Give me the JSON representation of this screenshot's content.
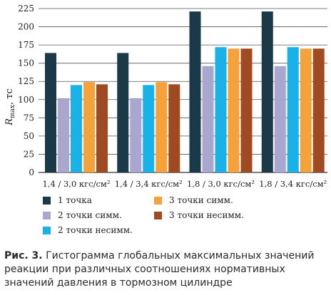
{
  "chart_data": {
    "type": "bar",
    "ylabel_main": "R",
    "ylabel_sub": "max",
    "ylabel_unit": ", тс",
    "ylim": [
      0,
      225
    ],
    "yticks": [
      0,
      25,
      50,
      75,
      100,
      125,
      150,
      175,
      200,
      225
    ],
    "grid": "horizontal",
    "legend_position": "bottom",
    "categories": [
      "1,4 / 3,0 кгс/см²",
      "1,4 / 3,4 кгс/см²",
      "1,8 / 3,0 кгс/см²",
      "1,8 / 3,4 кгс/см²"
    ],
    "series": [
      {
        "name": "1 точка",
        "color": "#1a3a4a",
        "values": [
          164,
          164,
          221,
          221
        ]
      },
      {
        "name": "2 точки симм.",
        "color": "#a9a6cf",
        "values": [
          102,
          102,
          146,
          146
        ]
      },
      {
        "name": "2 точки несимм.",
        "color": "#19b2e8",
        "values": [
          120,
          120,
          172,
          172
        ]
      },
      {
        "name": "3 точки симм.",
        "color": "#f5a23a",
        "values": [
          124,
          124,
          170,
          170
        ]
      },
      {
        "name": "3 точки несимм.",
        "color": "#a04a22",
        "values": [
          121,
          121,
          170,
          170
        ]
      }
    ]
  },
  "caption": {
    "label": "Рис. 3.",
    "text": " Гистограмма глобальных максимальных значений реакции при различных соотношениях нормативных значений давления в тормозном цилиндре"
  }
}
